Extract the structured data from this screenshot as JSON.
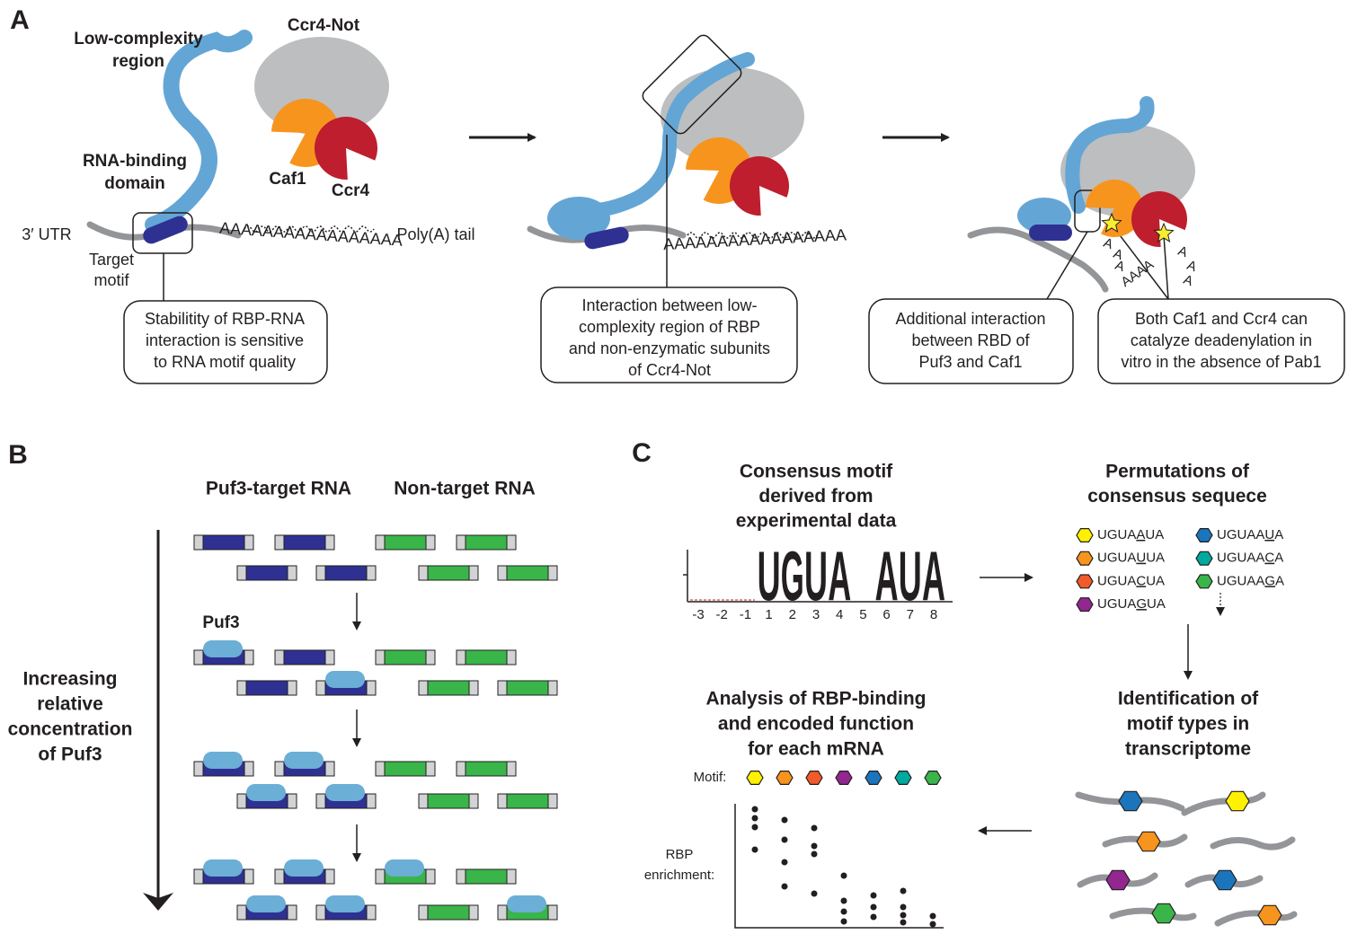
{
  "panel_a": {
    "label": "A",
    "low_complexity_region": [
      "Low-complexity",
      "region"
    ],
    "ccr4_not": "Ccr4-Not",
    "rna_binding_domain": [
      "RNA-binding",
      "domain"
    ],
    "caf1": "Caf1",
    "ccr4": "Ccr4",
    "utr": "3′ UTR",
    "target_motif": [
      "Target",
      "motif"
    ],
    "poly_a": "AAAAAAAAAAAAAAAAA",
    "poly_a_tail": "Poly(A) tail",
    "scattered_a": [
      "A",
      "A",
      "A",
      "AAAA",
      "A",
      "A",
      "A"
    ],
    "callouts": [
      [
        "Stabilitity of RBP-RNA",
        "interaction is sensitive",
        "to RNA motif quality"
      ],
      [
        "Interaction between low-",
        "complexity region of RBP",
        "and non-enzymatic subunits",
        "of Ccr4-Not"
      ],
      [
        "Additional interaction",
        "between RBD of",
        "Puf3 and Caf1"
      ],
      [
        "Both Caf1 and Ccr4 can",
        "catalyze deadenylation in",
        "vitro in the absence of Pab1"
      ]
    ]
  },
  "panel_b": {
    "label": "B",
    "target_rna": "Puf3-target RNA",
    "non_target_rna": "Non-target RNA",
    "puf3": "Puf3",
    "axis_label": [
      "Increasing",
      "relative",
      "concentration",
      "of Puf3"
    ]
  },
  "panel_c": {
    "label": "C",
    "consensus_title": [
      "Consensus motif",
      "derived from",
      "experimental data"
    ],
    "logo_letters": [
      "U",
      "G",
      "U",
      "A",
      "A",
      "U",
      "A"
    ],
    "positions": [
      -3,
      -2,
      -1,
      1,
      2,
      3,
      4,
      5,
      6,
      7,
      8
    ],
    "permutations_title": [
      "Permutations of",
      "consensus sequece"
    ],
    "permutations": [
      {
        "pre": "UGUA",
        "mut": "A",
        "post": "UA",
        "color": "#fff200"
      },
      {
        "pre": "UGUA",
        "mut": "U",
        "post": "UA",
        "color": "#f7941d"
      },
      {
        "pre": "UGUA",
        "mut": "C",
        "post": "UA",
        "color": "#f15a29"
      },
      {
        "pre": "UGUA",
        "mut": "G",
        "post": "UA",
        "color": "#92278f"
      },
      {
        "pre": "UGUAA",
        "mut": "U",
        "post": "A",
        "color": "#1b75bc"
      },
      {
        "pre": "UGUAA",
        "mut": "C",
        "post": "A",
        "color": "#00a99d"
      },
      {
        "pre": "UGUAA",
        "mut": "G",
        "post": "A",
        "color": "#39b54a"
      }
    ],
    "identification_title": [
      "Identification of",
      "motif types in",
      "transcriptome"
    ],
    "analysis_title": [
      "Analysis of RBP-binding",
      "and encoded function",
      "for each mRNA"
    ],
    "motif_label": "Motif:",
    "enrichment_label": [
      "RBP",
      "enrichment:"
    ]
  }
}
